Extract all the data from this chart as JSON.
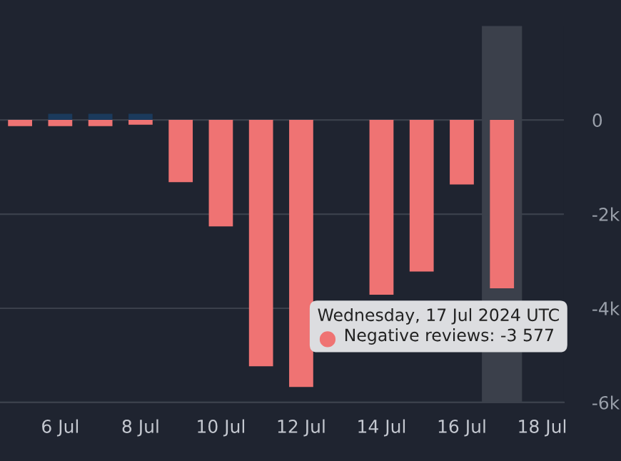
{
  "chart_data": {
    "type": "bar",
    "x": [
      "2024-07-05",
      "2024-07-06",
      "2024-07-07",
      "2024-07-08",
      "2024-07-09",
      "2024-07-10",
      "2024-07-11",
      "2024-07-12",
      "2024-07-13",
      "2024-07-14",
      "2024-07-15",
      "2024-07-16",
      "2024-07-17"
    ],
    "series": [
      {
        "color": "#1b3a5c",
        "values": [
          null,
          130,
          130,
          130,
          null,
          null,
          null,
          null,
          null,
          null,
          null,
          null,
          null
        ]
      },
      {
        "name": "Negative reviews:",
        "color": "#ef7373",
        "values": [
          -130,
          -130,
          -130,
          -100,
          -1320,
          -2260,
          -5230,
          -5670,
          null,
          -3710,
          -3220,
          -1370,
          -3577
        ],
        "value_labels": [
          null,
          null,
          null,
          null,
          null,
          null,
          null,
          null,
          null,
          null,
          null,
          null,
          "-3 577"
        ]
      }
    ],
    "xlim": [
      "2024-07-04T12:00",
      "2024-07-18T13:00"
    ],
    "xticks": [
      {
        "value": "2024-07-06",
        "label": "6 Jul"
      },
      {
        "value": "2024-07-08",
        "label": "8 Jul"
      },
      {
        "value": "2024-07-10",
        "label": "10 Jul"
      },
      {
        "value": "2024-07-12",
        "label": "12 Jul"
      },
      {
        "value": "2024-07-14",
        "label": "14 Jul"
      },
      {
        "value": "2024-07-16",
        "label": "16 Jul"
      },
      {
        "value": "2024-07-18",
        "label": "18 Jul"
      }
    ],
    "ylim": [
      -6000,
      2000
    ],
    "yticks": [
      {
        "value": 0,
        "label": "0"
      },
      {
        "value": -2000,
        "label": "-2k"
      },
      {
        "value": -4000,
        "label": "-4k"
      },
      {
        "value": -6000,
        "label": "-6k"
      }
    ],
    "grid": "y",
    "bands": [
      {
        "axis": "x",
        "from": "2024-07-16T12:00",
        "to": "2024-07-17T12:00",
        "color": "#3b404b"
      }
    ],
    "annotations": [
      {
        "text": "Wednesday, 17 Jul 2024 UTC",
        "x": "2024-07-17",
        "y": -3577
      }
    ]
  }
}
